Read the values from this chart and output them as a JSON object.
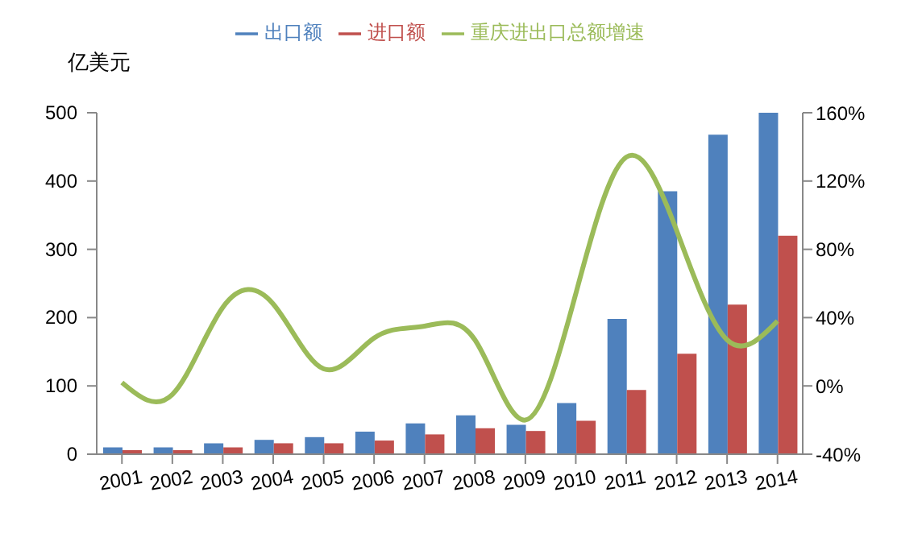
{
  "chart_data": {
    "type": "bar",
    "ylabel": "亿美元",
    "categories": [
      "2001",
      "2002",
      "2003",
      "2004",
      "2005",
      "2006",
      "2007",
      "2008",
      "2009",
      "2010",
      "2011",
      "2012",
      "2013",
      "2014"
    ],
    "series": [
      {
        "name": "出口额",
        "color": "#4f81bd",
        "values": [
          10,
          10,
          16,
          21,
          25,
          33,
          45,
          57,
          43,
          75,
          198,
          385,
          468,
          500
        ]
      },
      {
        "name": "进口额",
        "color": "#c0504d",
        "values": [
          6,
          6,
          10,
          16,
          16,
          20,
          29,
          38,
          34,
          49,
          94,
          147,
          219,
          320
        ]
      },
      {
        "name": "重庆进出口总额增速",
        "type": "line",
        "axis": "y2",
        "color": "#9bbb59",
        "marker": "none",
        "values": [
          2,
          -5,
          46,
          48,
          10,
          28,
          35,
          27,
          -20,
          54,
          134,
          91,
          27,
          38
        ]
      }
    ],
    "ylim": [
      0,
      500
    ],
    "yticks": [
      0,
      100,
      200,
      300,
      400,
      500
    ],
    "y2lim": [
      -40,
      160
    ],
    "y2ticks": [
      {
        "value": -40,
        "label": "-40%"
      },
      {
        "value": 0,
        "label": "0%"
      },
      {
        "value": 40,
        "label": "40%"
      },
      {
        "value": 80,
        "label": "80%"
      },
      {
        "value": 120,
        "label": "120%"
      },
      {
        "value": 160,
        "label": "160%"
      }
    ],
    "grid": false,
    "legend": "top"
  }
}
